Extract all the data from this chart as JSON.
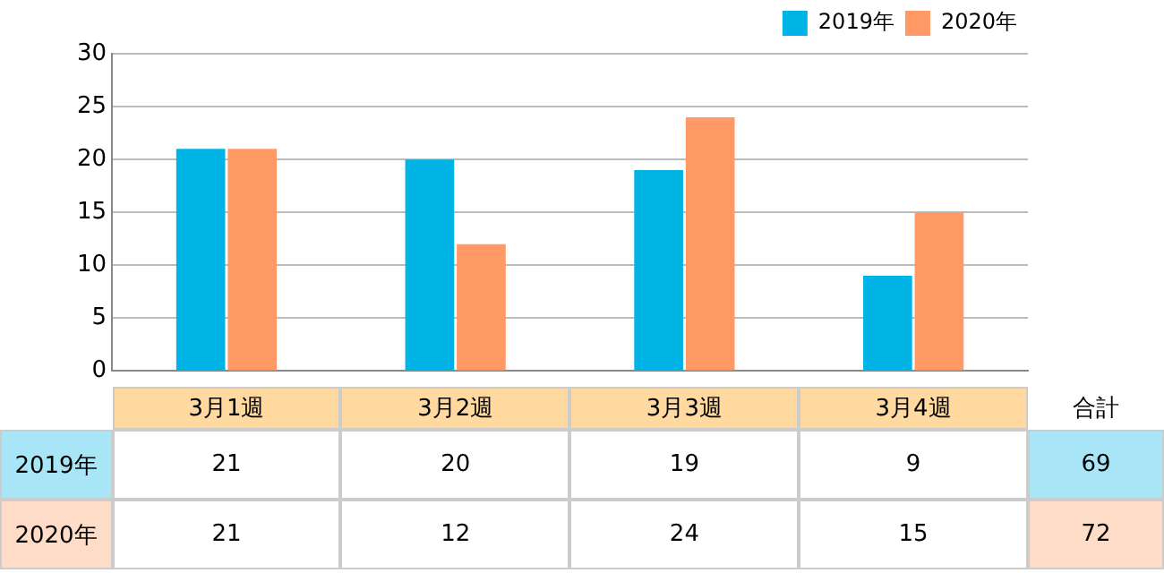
{
  "chart_data": {
    "type": "bar",
    "categories": [
      "3月1週",
      "3月2週",
      "3月3週",
      "3月4週"
    ],
    "series": [
      {
        "name": "2019年",
        "color": "#00b4e6",
        "values": [
          21,
          20,
          19,
          9
        ]
      },
      {
        "name": "2020年",
        "color": "#ff9966",
        "values": [
          21,
          12,
          24,
          15
        ]
      }
    ],
    "ylim": [
      0,
      30
    ],
    "yticks": [
      0,
      5,
      10,
      15,
      20,
      25,
      30
    ],
    "grid": "y",
    "legend": "top right",
    "data_labels": true,
    "annotations": [
      "合計",
      "69",
      "72"
    ]
  }
}
